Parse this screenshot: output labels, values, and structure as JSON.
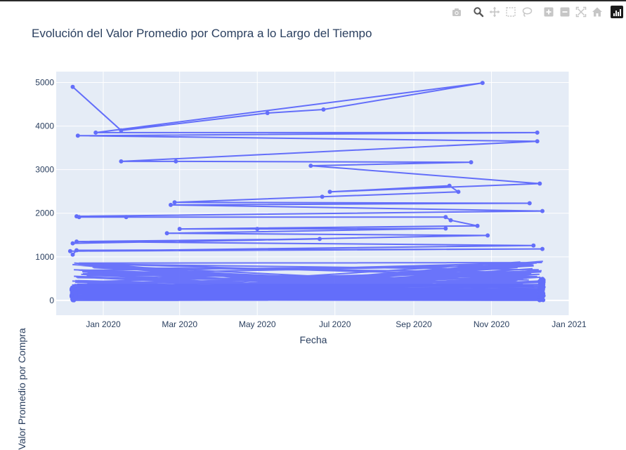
{
  "modebar": {
    "buttons": [
      {
        "name": "camera-icon",
        "group": 0
      },
      {
        "name": "zoom-icon",
        "group": 1
      },
      {
        "name": "pan-icon",
        "group": 1
      },
      {
        "name": "box-select-icon",
        "group": 1
      },
      {
        "name": "lasso-icon",
        "group": 1
      },
      {
        "name": "zoom-in-icon",
        "group": 2
      },
      {
        "name": "zoom-out-icon",
        "group": 2
      },
      {
        "name": "autoscale-icon",
        "group": 2
      },
      {
        "name": "home-icon",
        "group": 2
      }
    ],
    "colors": {
      "icon": "#c6c6c6",
      "active": "#555555"
    }
  },
  "chart_data": {
    "type": "line",
    "title": "Evolución del Valor Promedio por Compra a lo Largo del Tiempo",
    "xlabel": "Fecha",
    "ylabel": "Valor Promedio por Compra",
    "x_ticks": [
      "Jan 2020",
      "Mar 2020",
      "May 2020",
      "Jul 2020",
      "Sep 2020",
      "Nov 2020",
      "Jan 2021"
    ],
    "y_ticks": [
      0,
      1000,
      2000,
      3000,
      4000,
      5000
    ],
    "xlim": [
      "2019-11-25",
      "2021-01-01"
    ],
    "ylim": [
      -340,
      5250
    ],
    "grid": true,
    "line_color": "#636efa",
    "plot_bg": "#e5ecf6",
    "series": [
      {
        "x": [
          "2019-12-08",
          "2020-01-15",
          "2020-05-09",
          "2020-06-22",
          "2020-10-25",
          "2019-12-26",
          "2020-12-07",
          "2019-12-12",
          "2020-12-07",
          "2020-01-15",
          "2020-02-27",
          "2020-10-16",
          "2020-06-12",
          "2020-12-09",
          "2020-06-27",
          "2020-09-29",
          "2020-10-06",
          "2020-06-21",
          "2020-02-26",
          "2020-12-01",
          "2020-02-23",
          "2020-12-11",
          "2019-12-11",
          "2019-12-13",
          "2020-01-19",
          "2020-09-26",
          "2020-09-30",
          "2020-10-21",
          "2020-03-01",
          "2020-05-01",
          "2020-09-26",
          "2020-02-20",
          "2020-10-29",
          "2019-12-08",
          "2020-06-19",
          "2019-12-11",
          "2020-12-04",
          "2019-12-06",
          "2020-12-11",
          "2019-12-11",
          "2019-12-08"
        ],
        "y": [
          4900,
          3900,
          4300,
          4380,
          4990,
          3850,
          3850,
          3780,
          3650,
          3190,
          3190,
          3170,
          3090,
          2680,
          2490,
          2630,
          2490,
          2380,
          2250,
          2230,
          2190,
          2050,
          1930,
          1910,
          1910,
          1910,
          1840,
          1710,
          1640,
          1640,
          1650,
          1540,
          1490,
          1310,
          1410,
          1350,
          1260,
          1130,
          1180,
          1150,
          1050
        ]
      }
    ]
  }
}
